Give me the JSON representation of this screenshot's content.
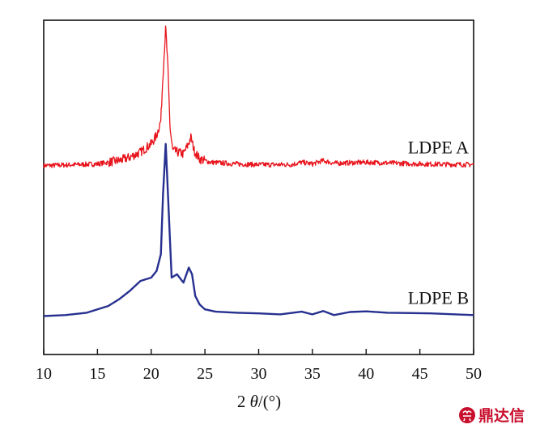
{
  "chart_data": {
    "type": "line",
    "xlabel": "2 θ/(°)",
    "xlabel_prefix": "2 ",
    "xlabel_symbol": "θ",
    "xlabel_suffix": "/(°)",
    "ylabel": "",
    "xlim": [
      10,
      50
    ],
    "ylim": [
      0,
      100
    ],
    "xticks": [
      10,
      15,
      20,
      25,
      30,
      35,
      40,
      45,
      50
    ],
    "grid": false,
    "legend": "inline labels on right",
    "series": [
      {
        "name": "LDPE A",
        "color": "#e8141c",
        "noise": true,
        "points": [
          [
            10,
            56.5
          ],
          [
            15,
            57.0
          ],
          [
            17,
            58.0
          ],
          [
            18,
            59.0
          ],
          [
            19,
            60.5
          ],
          [
            20,
            63.0
          ],
          [
            20.5,
            65.5
          ],
          [
            20.9,
            70.0
          ],
          [
            21.1,
            84.0
          ],
          [
            21.35,
            98.0
          ],
          [
            21.55,
            86.0
          ],
          [
            21.75,
            68.0
          ],
          [
            22.0,
            61.0
          ],
          [
            22.5,
            60.5
          ],
          [
            23.0,
            60.0
          ],
          [
            23.4,
            62.5
          ],
          [
            23.7,
            65.0
          ],
          [
            24.0,
            61.0
          ],
          [
            24.5,
            58.5
          ],
          [
            25.5,
            57.5
          ],
          [
            28,
            57.0
          ],
          [
            30,
            56.8
          ],
          [
            33,
            56.8
          ],
          [
            34,
            57.5
          ],
          [
            35,
            57.0
          ],
          [
            36,
            58.0
          ],
          [
            37,
            57.2
          ],
          [
            40,
            57.5
          ],
          [
            45,
            57.0
          ],
          [
            50,
            56.8
          ]
        ]
      },
      {
        "name": "LDPE B",
        "color": "#27308f",
        "noise": false,
        "points": [
          [
            10,
            11.5
          ],
          [
            12,
            11.8
          ],
          [
            14,
            12.5
          ],
          [
            16,
            14.5
          ],
          [
            17,
            16.5
          ],
          [
            18,
            19.0
          ],
          [
            19,
            22.0
          ],
          [
            20,
            23.0
          ],
          [
            20.5,
            25.0
          ],
          [
            20.9,
            30.0
          ],
          [
            21.1,
            48.0
          ],
          [
            21.35,
            63.0
          ],
          [
            21.6,
            45.0
          ],
          [
            21.9,
            23.0
          ],
          [
            22.4,
            24.0
          ],
          [
            23,
            21.5
          ],
          [
            23.5,
            26.0
          ],
          [
            23.8,
            24.0
          ],
          [
            24.1,
            17.5
          ],
          [
            24.5,
            15.0
          ],
          [
            25,
            13.5
          ],
          [
            26,
            12.8
          ],
          [
            28,
            12.5
          ],
          [
            30,
            12.3
          ],
          [
            32,
            12.0
          ],
          [
            34,
            12.8
          ],
          [
            35,
            12.0
          ],
          [
            36,
            13.0
          ],
          [
            37,
            11.8
          ],
          [
            38.5,
            12.7
          ],
          [
            40,
            12.9
          ],
          [
            42,
            12.5
          ],
          [
            46,
            12.3
          ],
          [
            50,
            11.8
          ]
        ]
      }
    ]
  },
  "watermark": {
    "text": "鼎达信",
    "icon": "seal-icon"
  }
}
